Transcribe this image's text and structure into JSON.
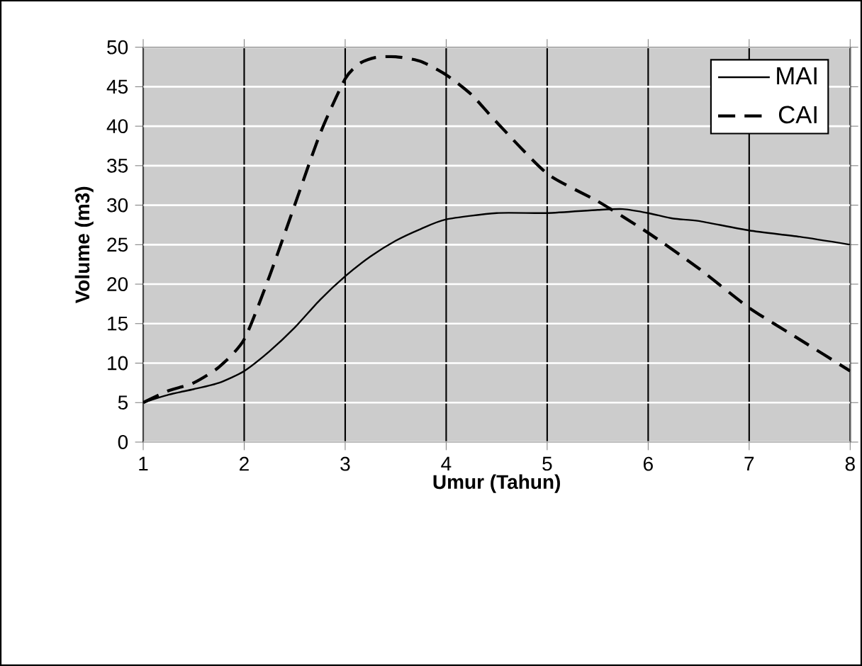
{
  "chart_data": {
    "type": "line",
    "xlabel": "Umur (Tahun)",
    "ylabel": "Volume (m3)",
    "xlim": [
      1,
      8
    ],
    "xticks": [
      1,
      2,
      3,
      4,
      5,
      6,
      7,
      8
    ],
    "ylim": [
      0,
      50
    ],
    "yticks": [
      0,
      5,
      10,
      15,
      20,
      25,
      30,
      35,
      40,
      45,
      50
    ],
    "grid": true,
    "legend": "top right",
    "marker": "none",
    "series": [
      {
        "name": "MAI",
        "color": "#000000",
        "line_style": "solid",
        "x": [
          1,
          1.25,
          1.5,
          1.75,
          2,
          2.25,
          2.5,
          2.75,
          3,
          3.25,
          3.5,
          3.75,
          4,
          4.5,
          5,
          5.5,
          5.75,
          6,
          6.25,
          6.5,
          7,
          7.5,
          8
        ],
        "values": [
          5,
          6,
          6.7,
          7.5,
          9,
          11.5,
          14.5,
          18,
          21,
          23.5,
          25.5,
          27,
          28.2,
          29,
          29,
          29.4,
          29.5,
          29,
          28.3,
          28,
          26.8,
          26,
          25
        ]
      },
      {
        "name": "CAI",
        "color": "#000000",
        "line_style": "dashed",
        "x": [
          1,
          1.25,
          1.5,
          1.75,
          2,
          2.25,
          2.5,
          2.75,
          3,
          3.15,
          3.3,
          3.5,
          3.75,
          4,
          4.25,
          4.5,
          5,
          5.5,
          6,
          6.5,
          7,
          7.5,
          8
        ],
        "values": [
          5,
          6.5,
          7.5,
          9.5,
          13,
          21,
          30,
          39,
          46,
          48,
          48.7,
          48.8,
          48.2,
          46.5,
          44,
          40.5,
          34,
          30.5,
          26.5,
          22,
          17,
          13,
          9
        ]
      }
    ]
  }
}
